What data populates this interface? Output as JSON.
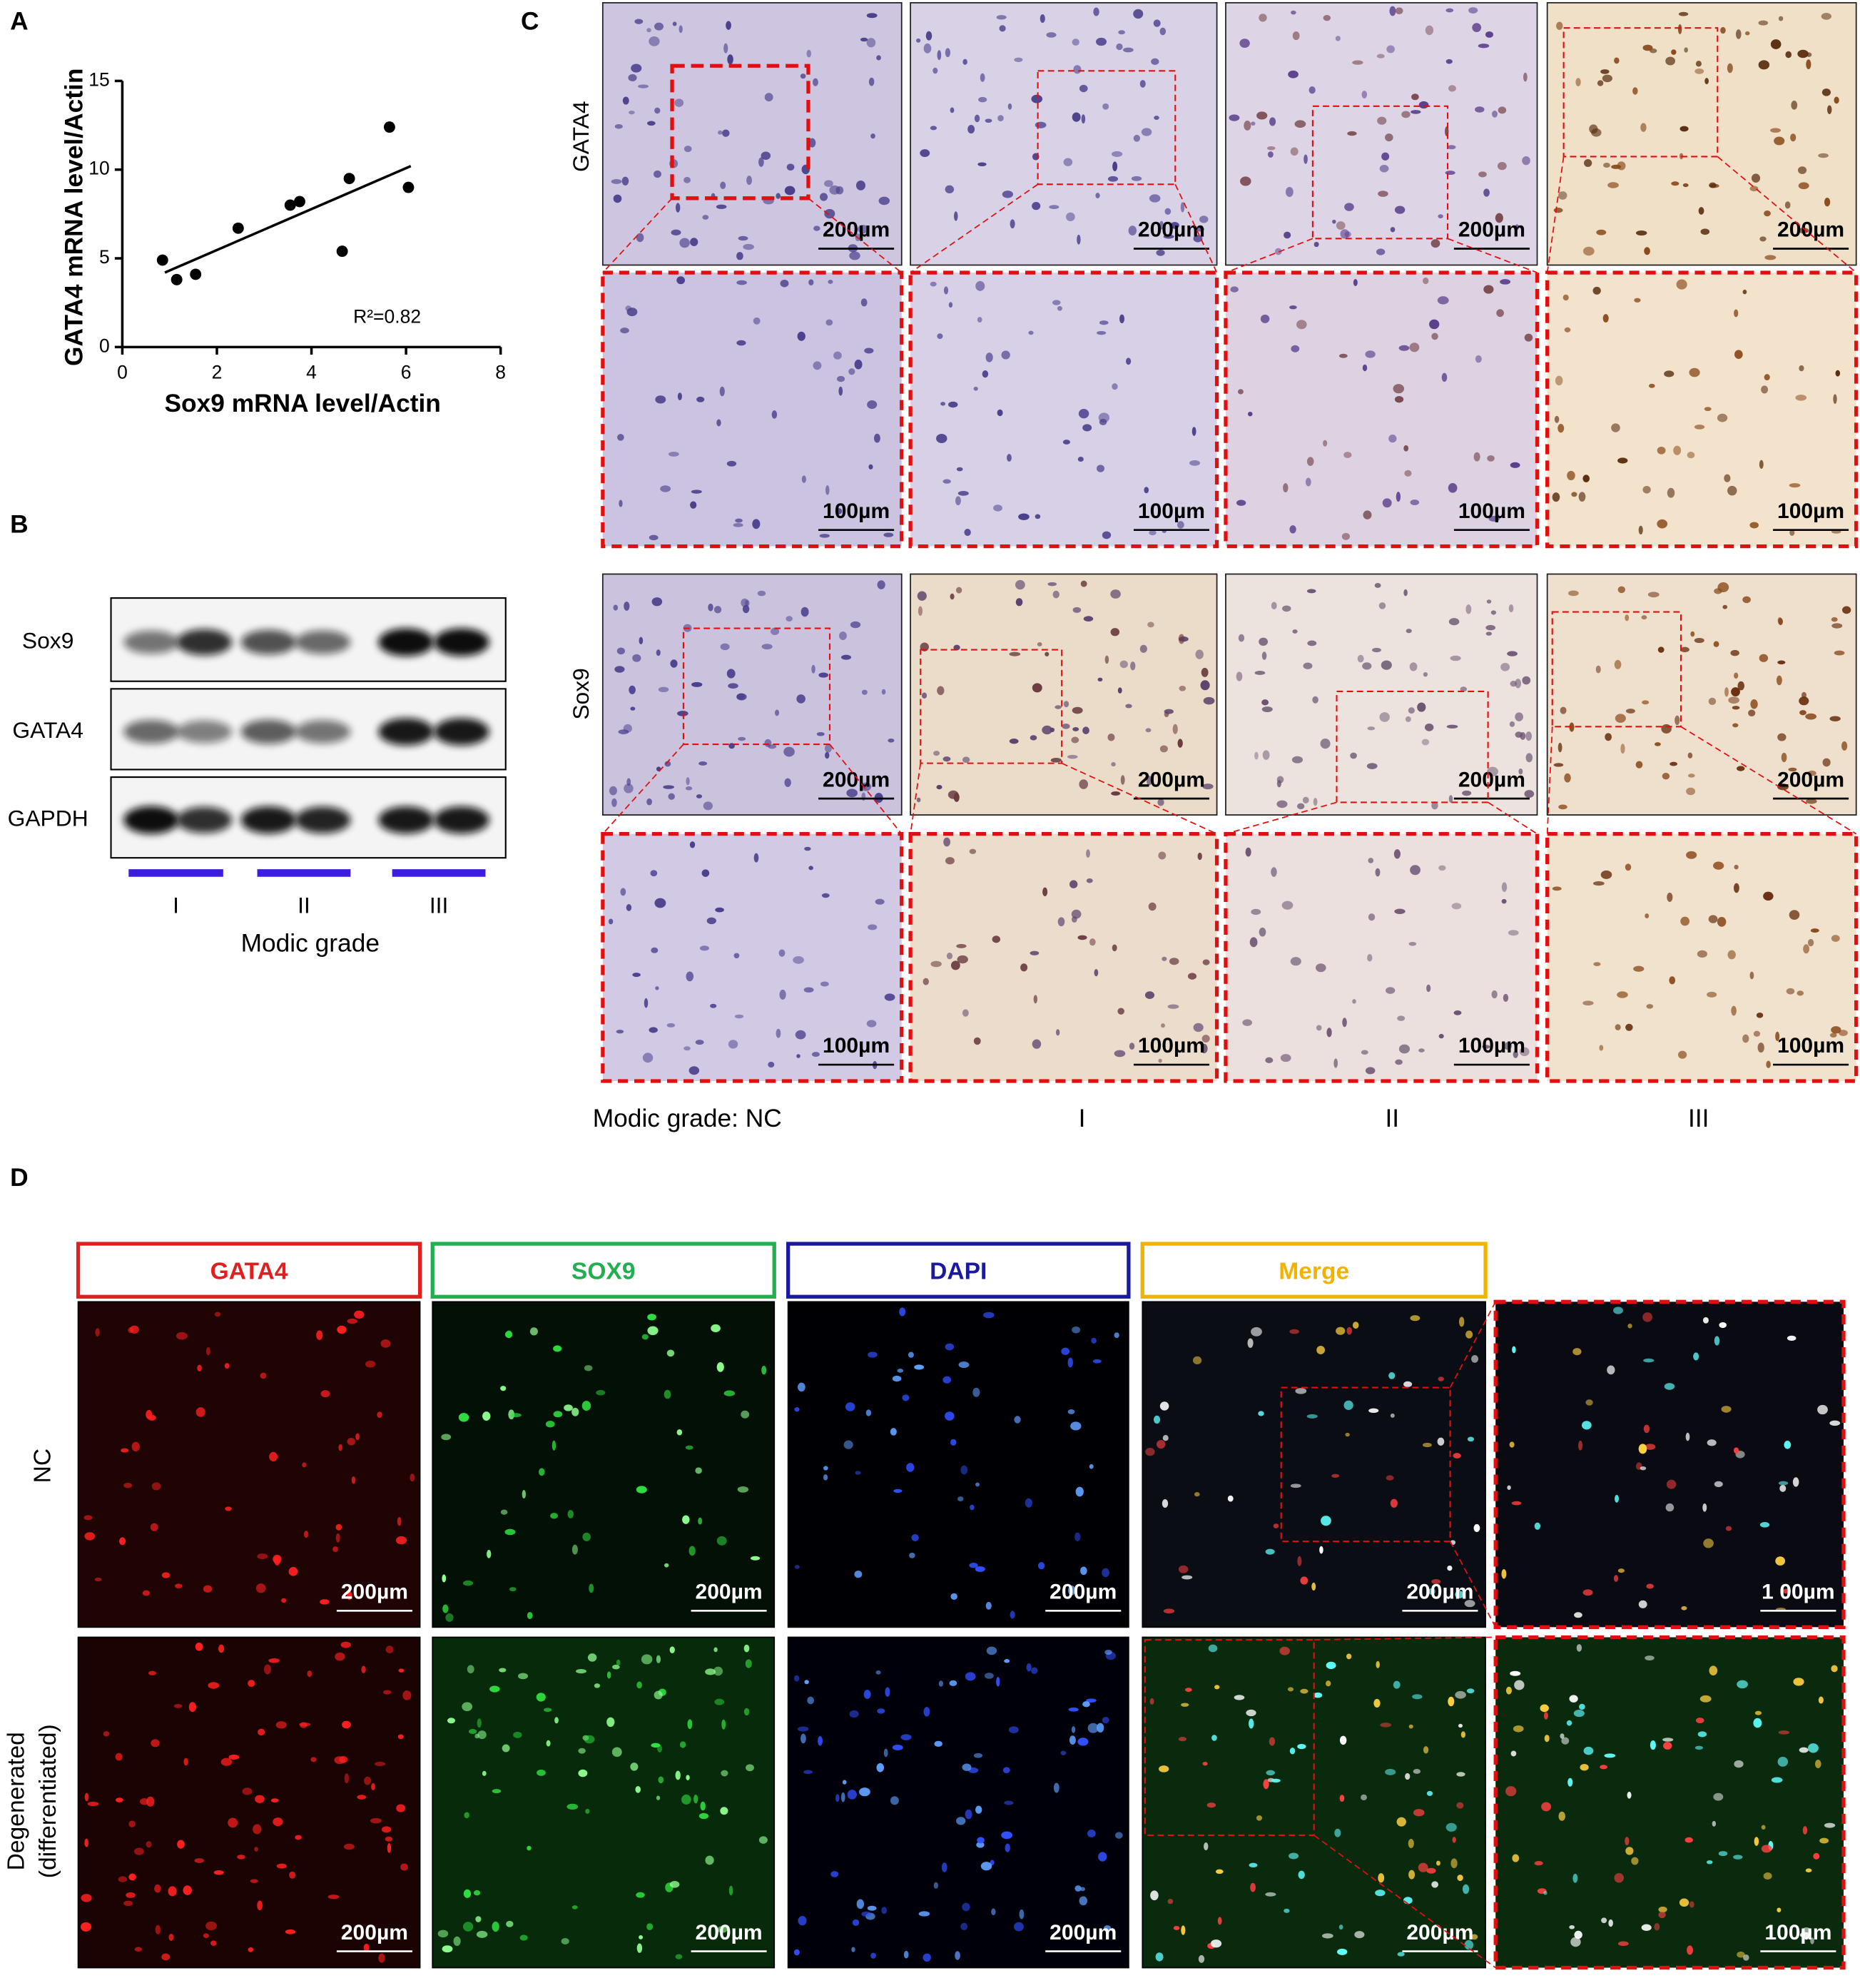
{
  "chart_data": {
    "type": "scatter",
    "panel_label": "A",
    "x_label": "Sox9 mRNA level/Actin",
    "y_label": "GATA4 mRNA level/Actin",
    "x": [
      0.85,
      1.15,
      1.55,
      2.45,
      3.55,
      3.75,
      4.65,
      4.8,
      5.65,
      6.05
    ],
    "values": [
      4.9,
      3.8,
      4.1,
      6.7,
      8.0,
      8.2,
      5.4,
      9.5,
      12.4,
      9.0
    ],
    "color": "#000000",
    "fit_line": {
      "x": [
        0.9,
        6.1
      ],
      "values": [
        4.2,
        10.2
      ]
    },
    "annotation": "R²=0.82",
    "xlim": [
      0,
      8
    ],
    "xticks": [
      0,
      2,
      4,
      6,
      8
    ],
    "ylim": [
      0,
      15
    ],
    "yticks": [
      0,
      5,
      10,
      15
    ]
  },
  "panel_b": {
    "letter": "B",
    "blot_labels": [
      "Sox9",
      "GATA4",
      "GAPDH"
    ],
    "groups": [
      "I",
      "II",
      "III"
    ],
    "group_axis_label": "Modic grade"
  },
  "panel_c": {
    "letter": "C",
    "row_labels": [
      "GATA4",
      "Sox9"
    ],
    "scale_bars": [
      [
        "200µm",
        "200µm",
        "200µm",
        "200µm"
      ],
      [
        "100µm",
        "100µm",
        "100µm",
        "100µm"
      ],
      [
        "200µm",
        "200µm",
        "200µm",
        "200µm"
      ],
      [
        "100µm",
        "100µm",
        "100µm",
        "100µm"
      ]
    ],
    "bottom_labels": [
      "Modic grade: NC",
      "I",
      "II",
      "III"
    ]
  },
  "panel_d": {
    "letter": "D",
    "column_headers": [
      "GATA4",
      "SOX9",
      "DAPI",
      "Merge"
    ],
    "row_labels": [
      [
        "NC"
      ],
      [
        "Degenerated",
        "(differentiated)"
      ]
    ],
    "scale_bars": [
      [
        "200µm",
        "200µm",
        "200µm",
        "200µm",
        "1 00µm"
      ],
      [
        "200µm",
        "200µm",
        "200µm",
        "200µm",
        "100µm"
      ]
    ]
  }
}
